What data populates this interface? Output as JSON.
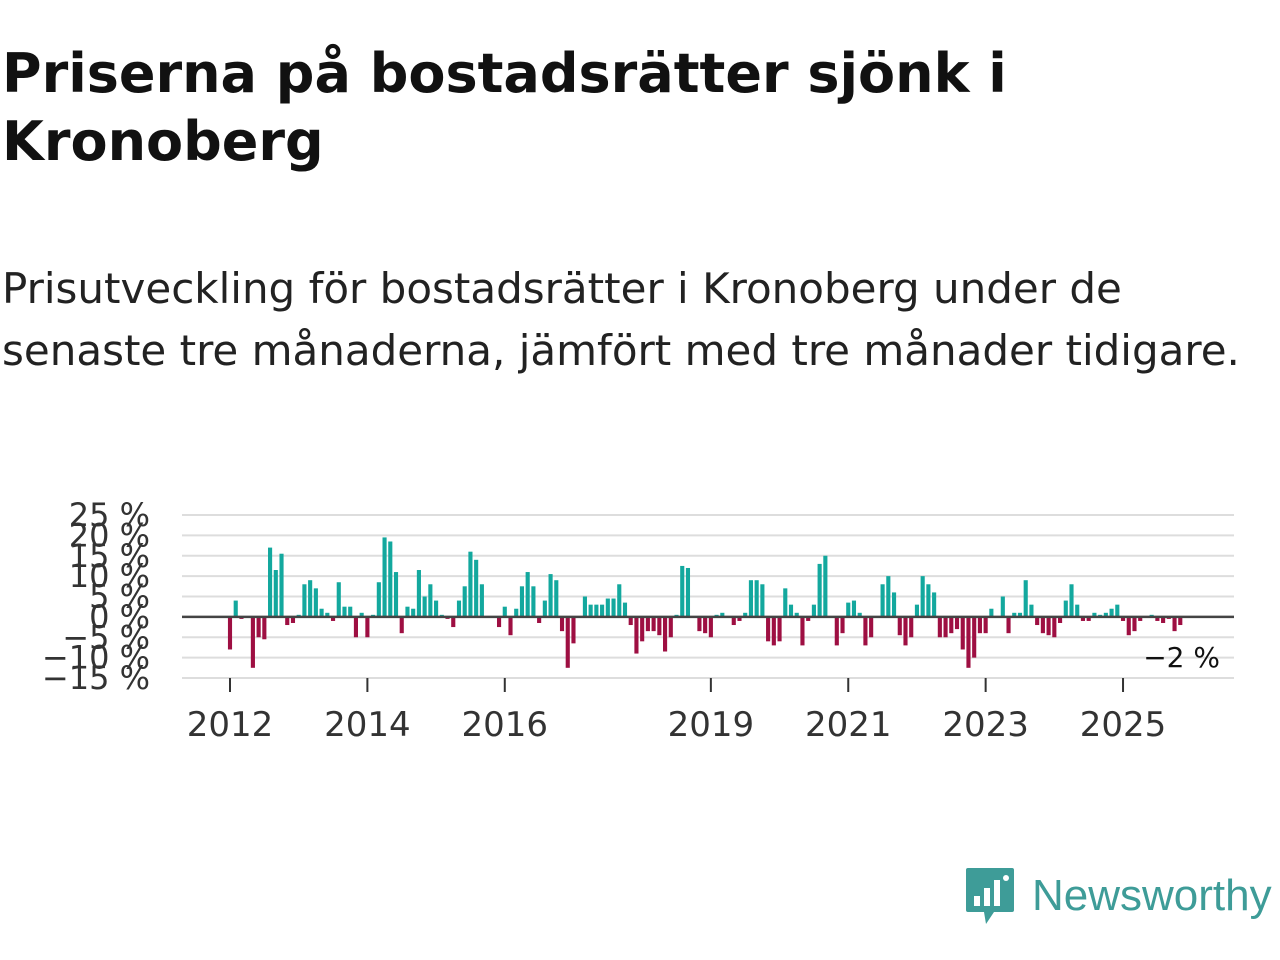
{
  "title": "Priserna på bostadsrätter sjönk i Kronoberg",
  "subtitle": "Prisutveckling för bostadsrätter i Kronoberg under de senaste tre månaderna, jämfört med tre månader tidigare.",
  "logo": {
    "text": "Newsworthy",
    "icon": "newsworthy-logo-icon"
  },
  "colors": {
    "positive": "#13a89e",
    "negative": "#9e0f42",
    "grid": "#dddddd",
    "zero": "#444444",
    "brand": "#3e9c98"
  },
  "chart_data": {
    "type": "bar",
    "title": "",
    "xlabel": "",
    "ylabel": "",
    "ylim": [
      -15,
      25
    ],
    "y_ticks": [
      25,
      20,
      15,
      10,
      5,
      0,
      -5,
      -10,
      -15
    ],
    "y_tick_labels": [
      "25 %",
      "20 %",
      "15 %",
      "10 %",
      "5 %",
      "0 %",
      "−5 %",
      "−10 %",
      "−15 %"
    ],
    "x_ticks": [
      {
        "label": "2012",
        "index": 0
      },
      {
        "label": "2014",
        "index": 24
      },
      {
        "label": "2016",
        "index": 48
      },
      {
        "label": "2019",
        "index": 84
      },
      {
        "label": "2021",
        "index": 108
      },
      {
        "label": "2023",
        "index": 132
      },
      {
        "label": "2025",
        "index": 156
      }
    ],
    "last_value_label": "−2 %",
    "series": [
      {
        "name": "Prisutveckling",
        "start": "2012-01",
        "values": [
          -8,
          4,
          -0.5,
          0,
          -12.5,
          -5,
          -5.5,
          17,
          11.5,
          15.5,
          -2,
          -1.5,
          0.5,
          8,
          9,
          7,
          2,
          1,
          -1,
          8.5,
          2.5,
          2.5,
          -5,
          1,
          -5,
          0.5,
          8.5,
          19.5,
          18.5,
          11,
          -4,
          2.5,
          2,
          11.5,
          5,
          8,
          4,
          0.5,
          -0.5,
          -2.5,
          4,
          7.5,
          16,
          14,
          8,
          0,
          0,
          -2.5,
          2.5,
          -4.5,
          2,
          7.5,
          11,
          7.5,
          -1.5,
          4,
          10.5,
          9,
          -3.5,
          -12.5,
          -6.5,
          0,
          5,
          3,
          3,
          3,
          4.5,
          4.5,
          8,
          3.5,
          -2,
          -9,
          -6,
          -3.5,
          -3.5,
          -4.5,
          -8.5,
          -5,
          0.5,
          12.5,
          12,
          0,
          -3.5,
          -4,
          -5,
          0.5,
          1,
          0,
          -2,
          -1,
          1,
          9,
          9,
          8,
          -6,
          -7,
          -6,
          7,
          3,
          1,
          -7,
          -1,
          3,
          13,
          15,
          0,
          -7,
          -4,
          3.5,
          4,
          1,
          -7,
          -5,
          0,
          8,
          10,
          6,
          -4.5,
          -7,
          -5,
          3,
          10,
          8,
          6,
          -5,
          -5,
          -4,
          -3,
          -8,
          -12.5,
          -10,
          -4,
          -4,
          2,
          0,
          5,
          -4,
          1,
          1,
          9,
          3,
          -2,
          -4,
          -4.5,
          -5,
          -1.5,
          4,
          8,
          3,
          -1,
          -1,
          1,
          0.5,
          1,
          2,
          3,
          -1,
          -4.5,
          -3.5,
          -1,
          0,
          0.5,
          -1,
          -1.5,
          -0.5,
          -3.5,
          -2
        ]
      }
    ]
  }
}
